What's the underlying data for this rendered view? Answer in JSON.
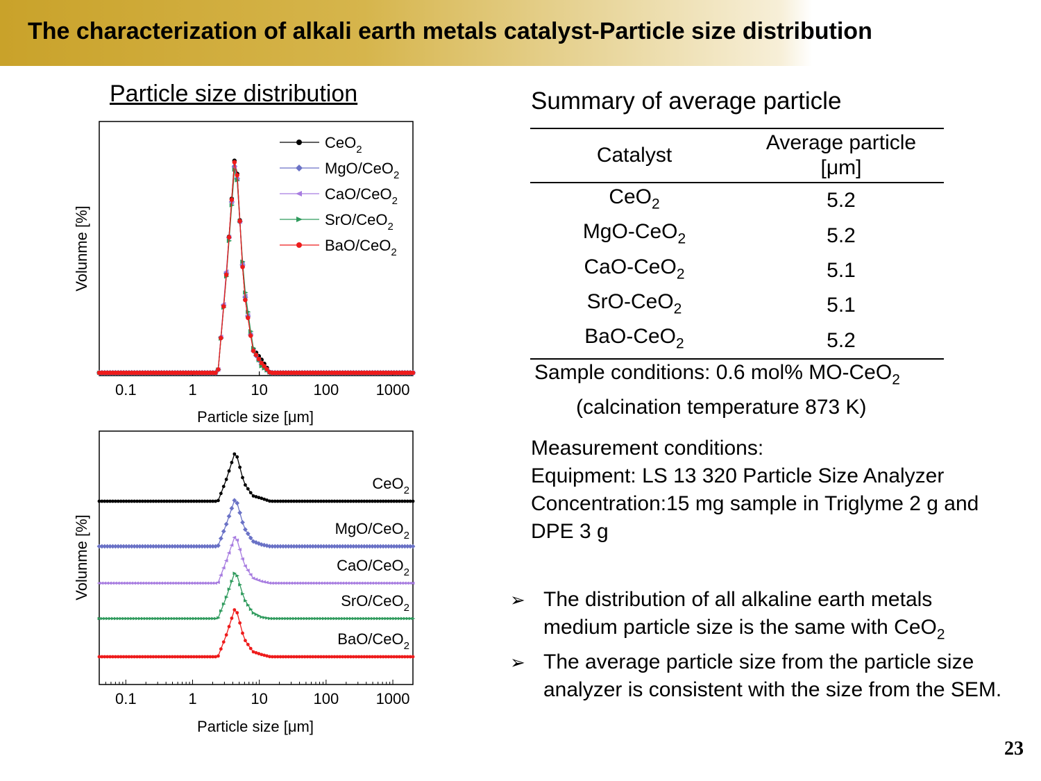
{
  "slide_title": "The characterization of alkali earth metals catalyst-Particle size distribution",
  "plot_heading": "Particle size distribution",
  "summary": {
    "title": "Summary of average particle",
    "header_catalyst": "Catalyst",
    "header_avg_line1": "Average particle",
    "header_avg_line2": "[μm]",
    "rows": [
      {
        "catalyst": "CeO",
        "catalyst_suffix": "",
        "value": "5.2"
      },
      {
        "catalyst": "MgO-CeO",
        "catalyst_suffix": "",
        "value": "5.2"
      },
      {
        "catalyst": "CaO-CeO",
        "catalyst_suffix": "",
        "value": "5.1"
      },
      {
        "catalyst": "SrO-CeO",
        "catalyst_suffix": "",
        "value": "5.1"
      },
      {
        "catalyst": "BaO-CeO",
        "catalyst_suffix": "",
        "value": "5.2"
      }
    ],
    "subscript": "2"
  },
  "sample_conditions_line1": "Sample conditions: 0.6 mol% MO-CeO",
  "sample_conditions_line2": "(calcination temperature 873 K)",
  "measurement": {
    "line1": "Measurement conditions:",
    "line2": "Equipment: LS 13 320 Particle Size Analyzer",
    "line3": "Concentration:15 mg sample in Triglyme 2 g and",
    "line4": "DPE 3 g"
  },
  "bullets": [
    {
      "text": "The distribution of all alkaline earth metals medium particle size is the same with CeO",
      "sub": "2"
    },
    {
      "text": "The average particle size from the particle size analyzer is consistent with the size from the SEM.",
      "sub": ""
    }
  ],
  "page_number": "23",
  "colors": {
    "CeO2": "#000000",
    "MgO/CeO2": "#6a72c6",
    "CaO/CeO2": "#a77ce0",
    "SrO/CeO2": "#2e9a5c",
    "BaO/CeO2": "#ee1b1b"
  },
  "chart_data": [
    {
      "type": "line",
      "x_scale": "log",
      "xlim": [
        0.04,
        2000
      ],
      "xlabel": "Particle size [μm]",
      "ylabel": "Volunme [%]",
      "x_ticks": [
        "0.1",
        "1",
        "10",
        "100",
        "1000"
      ],
      "legend_position": "top-right",
      "markers": {
        "CeO2": "circle",
        "MgO/CeO2": "diamond",
        "CaO/CeO2": "triangle-left",
        "SrO/CeO2": "triangle-right",
        "BaO/CeO2": "circle"
      },
      "series": [
        {
          "name": "CeO",
          "name_sub": "2",
          "key": "CeO2",
          "x": [
            2.4,
            3.2,
            4.4,
            5.9,
            8.0,
            10.8,
            14.5
          ],
          "values": [
            0,
            6,
            14,
            5,
            1.5,
            0.8,
            0
          ]
        },
        {
          "name": "MgO/CeO",
          "name_sub": "2",
          "key": "MgO/CeO2",
          "x": [
            2.4,
            3.2,
            4.4,
            5.9,
            8.0,
            10.8,
            14.5
          ],
          "values": [
            0,
            6.1,
            13.6,
            5.2,
            1.4,
            0.5,
            0
          ]
        },
        {
          "name": "CaO/CeO",
          "name_sub": "2",
          "key": "CaO/CeO2",
          "x": [
            2.4,
            3.2,
            4.4,
            5.9,
            8.0,
            10.8,
            14.5
          ],
          "values": [
            0,
            6.2,
            13.5,
            5.3,
            1.4,
            0.5,
            0
          ]
        },
        {
          "name": "SrO/CeO",
          "name_sub": "2",
          "key": "SrO/CeO2",
          "x": [
            2.4,
            3.2,
            4.4,
            5.9,
            8.0,
            10.8,
            14.5
          ],
          "values": [
            0,
            5.9,
            13.4,
            5.5,
            1.6,
            0.4,
            0
          ]
        },
        {
          "name": "BaO/CeO",
          "name_sub": "2",
          "key": "BaO/CeO2",
          "x": [
            2.4,
            3.2,
            4.4,
            5.9,
            8.0,
            10.8,
            14.5
          ],
          "values": [
            0,
            6.0,
            13.9,
            5.0,
            1.4,
            0.6,
            0
          ]
        }
      ]
    },
    {
      "type": "line",
      "x_scale": "log",
      "xlim": [
        0.04,
        2000
      ],
      "xlabel": "Particle size [μm]",
      "ylabel": "Volunme [%]",
      "x_ticks": [
        "0.1",
        "1",
        "10",
        "100",
        "1000"
      ],
      "stacked_offset": true,
      "series": [
        {
          "name": "CeO",
          "name_sub": "2",
          "key": "CeO2",
          "x": [
            2.4,
            3.2,
            4.4,
            5.9,
            8.0,
            10.8,
            14.5
          ],
          "values": [
            0,
            6,
            14,
            5,
            1.5,
            0.8,
            0
          ]
        },
        {
          "name": "MgO/CeO",
          "name_sub": "2",
          "key": "MgO/CeO2",
          "x": [
            2.4,
            3.2,
            4.4,
            5.9,
            8.0,
            10.8,
            14.5
          ],
          "values": [
            0,
            6.1,
            13.6,
            5.2,
            1.4,
            0.5,
            0
          ]
        },
        {
          "name": "CaO/CeO",
          "name_sub": "2",
          "key": "CaO/CeO2",
          "x": [
            2.4,
            3.2,
            4.4,
            5.9,
            8.0,
            10.8,
            14.5
          ],
          "values": [
            0,
            6.2,
            13.5,
            5.3,
            1.4,
            0.5,
            0
          ]
        },
        {
          "name": "SrO/CeO",
          "name_sub": "2",
          "key": "SrO/CeO2",
          "x": [
            2.4,
            3.2,
            4.4,
            5.9,
            8.0,
            10.8,
            14.5
          ],
          "values": [
            0,
            5.9,
            13.4,
            5.5,
            1.6,
            0.4,
            0
          ]
        },
        {
          "name": "BaO/CeO",
          "name_sub": "2",
          "key": "BaO/CeO2",
          "x": [
            2.4,
            3.2,
            4.4,
            5.9,
            8.0,
            10.8,
            14.5
          ],
          "values": [
            0,
            6.0,
            13.9,
            5.0,
            1.4,
            0.6,
            0
          ]
        }
      ]
    }
  ]
}
